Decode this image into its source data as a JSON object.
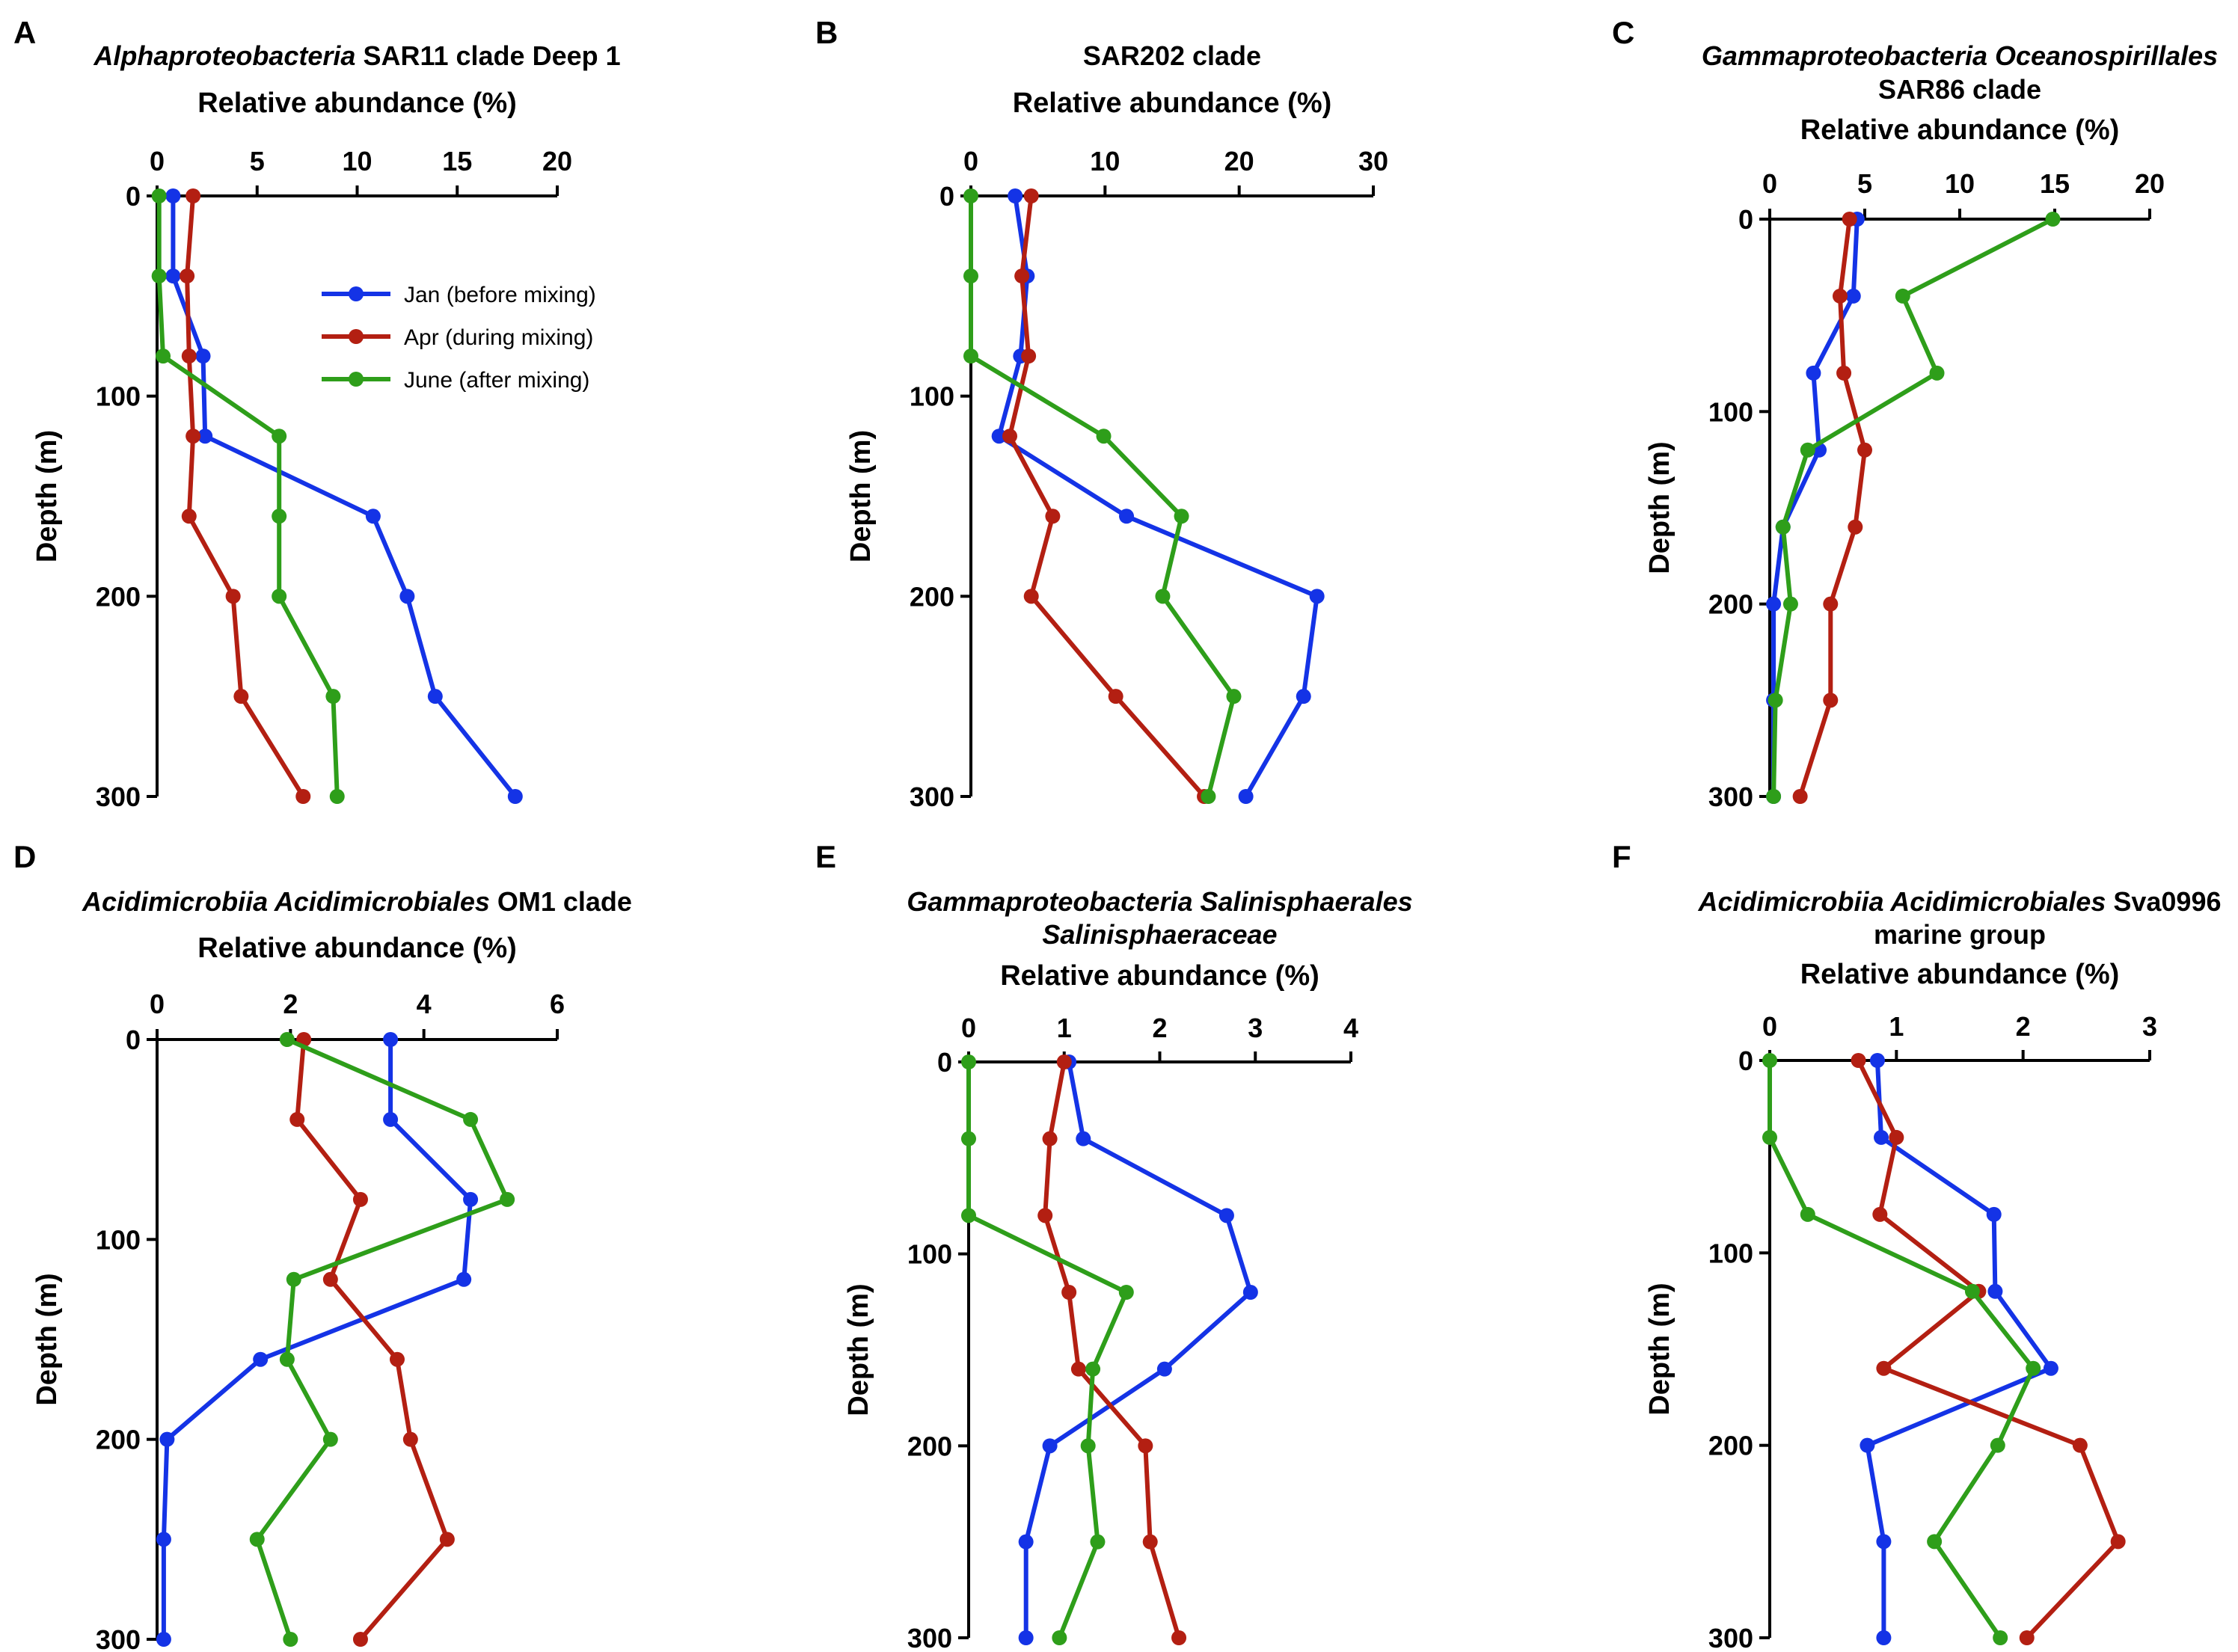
{
  "colors": {
    "jan": "#1433e6",
    "apr": "#b31f12",
    "june": "#2e9e1a"
  },
  "legend": {
    "jan": "Jan (before mixing)",
    "apr": "Apr (during mixing)",
    "june": "June (after mixing)"
  },
  "chart_data": [
    {
      "panel": "A",
      "type": "line",
      "title": [
        [
          {
            "text": "Alphaproteobacteria",
            "italic": true
          },
          {
            "text": " SAR11 clade Deep 1",
            "italic": false
          }
        ]
      ],
      "xlabel": "Relative abundance (%)",
      "ylabel": "Depth (m)",
      "xlim": [
        0,
        20
      ],
      "xticks": [
        0,
        5,
        10,
        15,
        20
      ],
      "ylim": [
        0,
        300
      ],
      "yticks": [
        0,
        100,
        200,
        300
      ],
      "depths": [
        0,
        40,
        80,
        120,
        160,
        200,
        250,
        300
      ],
      "series": [
        {
          "key": "jan",
          "values": [
            0.8,
            0.8,
            2.3,
            2.4,
            10.8,
            12.5,
            13.9,
            17.9
          ]
        },
        {
          "key": "apr",
          "values": [
            1.8,
            1.5,
            1.6,
            1.8,
            1.6,
            3.8,
            4.2,
            7.3
          ]
        },
        {
          "key": "june",
          "values": [
            0.1,
            0.1,
            0.3,
            6.1,
            6.1,
            6.1,
            8.8,
            9.0
          ]
        }
      ],
      "legend_shown": true
    },
    {
      "panel": "B",
      "type": "line",
      "title": [
        [
          {
            "text": "SAR202 clade",
            "italic": false
          }
        ]
      ],
      "xlabel": "Relative abundance (%)",
      "ylabel": "Depth (m)",
      "xlim": [
        0,
        30
      ],
      "xticks": [
        0,
        10,
        20,
        30
      ],
      "ylim": [
        0,
        300
      ],
      "yticks": [
        0,
        100,
        200,
        300
      ],
      "depths": [
        0,
        40,
        80,
        120,
        160,
        200,
        250,
        300
      ],
      "series": [
        {
          "key": "jan",
          "values": [
            3.3,
            4.2,
            3.7,
            2.1,
            11.6,
            25.8,
            24.8,
            20.5
          ]
        },
        {
          "key": "apr",
          "values": [
            4.5,
            3.8,
            4.3,
            2.9,
            6.1,
            4.5,
            10.8,
            17.4
          ]
        },
        {
          "key": "june",
          "values": [
            0,
            0,
            0,
            9.9,
            15.7,
            14.3,
            19.6,
            17.7
          ]
        }
      ],
      "legend_shown": false
    },
    {
      "panel": "C",
      "type": "line",
      "title": [
        [
          {
            "text": "Gammaproteobacteria Oceanospirillales",
            "italic": true
          }
        ],
        [
          {
            "text": "SAR86 clade",
            "italic": false
          }
        ]
      ],
      "xlabel": "Relative abundance (%)",
      "ylabel": "Depth (m)",
      "xlim": [
        0,
        20
      ],
      "xticks": [
        0,
        5,
        10,
        15,
        20
      ],
      "ylim": [
        0,
        300
      ],
      "yticks": [
        0,
        100,
        200,
        300
      ],
      "depths": [
        0,
        40,
        80,
        120,
        160,
        200,
        250,
        300
      ],
      "series": [
        {
          "key": "jan",
          "values": [
            4.6,
            4.4,
            2.3,
            2.6,
            0.7,
            0.2,
            0.2,
            0.2
          ]
        },
        {
          "key": "apr",
          "values": [
            4.2,
            3.7,
            3.9,
            5.0,
            4.5,
            3.2,
            3.2,
            1.6
          ]
        },
        {
          "key": "june",
          "values": [
            14.9,
            7.0,
            8.8,
            2.0,
            0.7,
            1.1,
            0.3,
            0.2
          ]
        }
      ],
      "legend_shown": false
    },
    {
      "panel": "D",
      "type": "line",
      "title": [
        [
          {
            "text": "Acidimicrobiia Acidimicrobiales",
            "italic": true
          },
          {
            "text": " OM1 clade",
            "italic": false
          }
        ]
      ],
      "xlabel": "Relative abundance (%)",
      "ylabel": "Depth (m)",
      "xlim": [
        0,
        6
      ],
      "xticks": [
        0,
        2,
        4,
        6
      ],
      "ylim": [
        0,
        300
      ],
      "yticks": [
        0,
        100,
        200,
        300
      ],
      "depths": [
        0,
        40,
        80,
        120,
        160,
        200,
        250,
        300
      ],
      "series": [
        {
          "key": "jan",
          "values": [
            3.5,
            3.5,
            4.7,
            4.6,
            1.55,
            0.15,
            0.1,
            0.1
          ]
        },
        {
          "key": "apr",
          "values": [
            2.2,
            2.1,
            3.05,
            2.6,
            3.6,
            3.8,
            4.35,
            3.05
          ]
        },
        {
          "key": "june",
          "values": [
            1.95,
            4.7,
            5.25,
            2.05,
            1.95,
            2.6,
            1.5,
            2.0
          ]
        }
      ],
      "legend_shown": false
    },
    {
      "panel": "E",
      "type": "line",
      "title": [
        [
          {
            "text": "Gammaproteobacteria Salinisphaerales",
            "italic": true
          }
        ],
        [
          {
            "text": "Salinisphaeraceae",
            "italic": true
          }
        ]
      ],
      "xlabel": "Relative abundance (%)",
      "ylabel": "Depth (m)",
      "xlim": [
        0,
        4
      ],
      "xticks": [
        0,
        1,
        2,
        3,
        4
      ],
      "ylim": [
        0,
        300
      ],
      "yticks": [
        0,
        100,
        200,
        300
      ],
      "depths": [
        0,
        40,
        80,
        120,
        160,
        200,
        250,
        300
      ],
      "series": [
        {
          "key": "jan",
          "values": [
            1.05,
            1.2,
            2.7,
            2.95,
            2.05,
            0.85,
            0.6,
            0.6
          ]
        },
        {
          "key": "apr",
          "values": [
            1.0,
            0.85,
            0.8,
            1.05,
            1.15,
            1.85,
            1.9,
            2.2
          ]
        },
        {
          "key": "june",
          "values": [
            0,
            0,
            0,
            1.65,
            1.3,
            1.25,
            1.35,
            0.95
          ]
        }
      ],
      "legend_shown": false
    },
    {
      "panel": "F",
      "type": "line",
      "title": [
        [
          {
            "text": "Acidimicrobiia Acidimicrobiales",
            "italic": true
          },
          {
            "text": " Sva0996",
            "italic": false
          }
        ],
        [
          {
            "text": "marine group",
            "italic": false
          }
        ]
      ],
      "xlabel": "Relative abundance (%)",
      "ylabel": "Depth (m)",
      "xlim": [
        0,
        3
      ],
      "xticks": [
        0,
        1,
        2,
        3
      ],
      "ylim": [
        0,
        300
      ],
      "yticks": [
        0,
        100,
        200,
        300
      ],
      "depths": [
        0,
        40,
        80,
        120,
        160,
        200,
        250,
        300
      ],
      "series": [
        {
          "key": "jan",
          "values": [
            0.85,
            0.88,
            1.77,
            1.78,
            2.22,
            0.77,
            0.9,
            0.9
          ]
        },
        {
          "key": "apr",
          "values": [
            0.7,
            1.0,
            0.87,
            1.65,
            0.9,
            2.45,
            2.75,
            2.03
          ]
        },
        {
          "key": "june",
          "values": [
            0,
            0,
            0.3,
            1.6,
            2.08,
            1.8,
            1.3,
            1.82
          ]
        }
      ],
      "legend_shown": false
    }
  ]
}
